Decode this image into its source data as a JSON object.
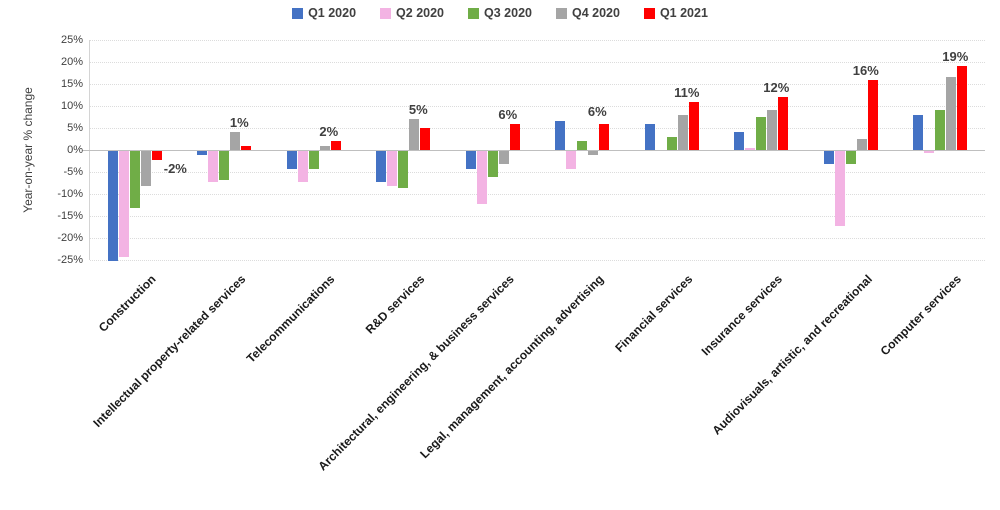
{
  "legend_note": "legend entries mirror chart_data.series names and colors",
  "chart_data": {
    "type": "bar",
    "title": "",
    "xlabel": "",
    "ylabel": "Year-on-year % change",
    "ylim": [
      -25,
      25
    ],
    "ytick_step": 5,
    "yticks": [
      "25%",
      "20%",
      "15%",
      "10%",
      "5%",
      "0%",
      "-5%",
      "-10%",
      "-15%",
      "-20%",
      "-25%"
    ],
    "grid": "horizontal-dotted",
    "legend_position": "top-center",
    "categories": [
      "Construction",
      "Intellectual property-related services",
      "Telecommunications",
      "R&D services",
      "Architectural, engineering, & business services",
      "Legal, management, accounting, advertising",
      "Financial services",
      "Insurance services",
      "Audiovisuals, artistic, and recreational",
      "Computer services"
    ],
    "series": [
      {
        "name": "Q1 2020",
        "color": "#4472C4",
        "values": [
          -25,
          -1,
          -4,
          -7,
          -4,
          6.5,
          6,
          4,
          -3,
          8
        ]
      },
      {
        "name": "Q2 2020",
        "color": "#F3B3E3",
        "values": [
          -24,
          -7,
          -7,
          -8,
          -12,
          -4,
          0,
          0.5,
          -17,
          -0.5
        ]
      },
      {
        "name": "Q3 2020",
        "color": "#70AD47",
        "values": [
          -13,
          -6.5,
          -4,
          -8.5,
          -6,
          2,
          3,
          7.5,
          -3,
          9
        ]
      },
      {
        "name": "Q4 2020",
        "color": "#A5A5A5",
        "values": [
          -8,
          4,
          1,
          7,
          -3,
          -1,
          8,
          9,
          2.5,
          16.5
        ]
      },
      {
        "name": "Q1 2021",
        "color": "#FF0000",
        "values": [
          -2,
          1,
          2,
          5,
          6,
          6,
          11,
          12,
          16,
          19
        ]
      }
    ],
    "data_labels": [
      "-2%",
      "1%",
      "2%",
      "5%",
      "6%",
      "6%",
      "11%",
      "12%",
      "16%",
      "19%"
    ],
    "data_labels_series": "Q1 2021"
  }
}
